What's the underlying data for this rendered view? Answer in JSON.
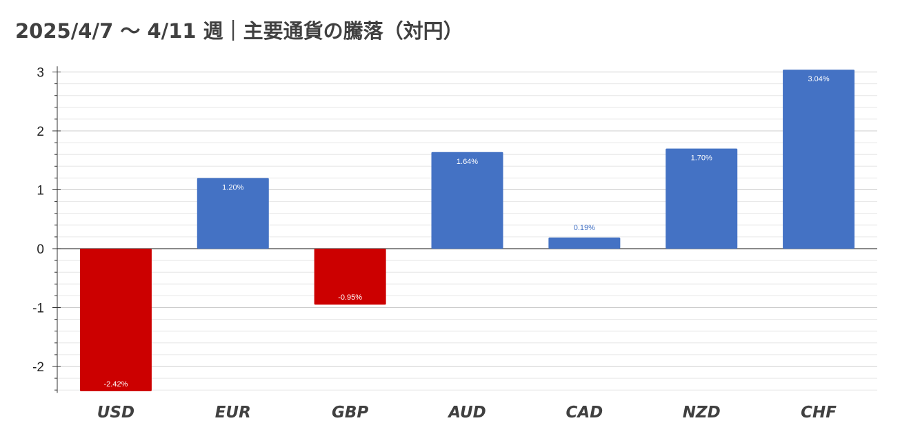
{
  "chart_data": {
    "type": "bar",
    "title": "2025/4/7 〜 4/11 週｜主要通貨の騰落（対円）",
    "categories": [
      "USD",
      "EUR",
      "GBP",
      "AUD",
      "CAD",
      "NZD",
      "CHF"
    ],
    "values": [
      -2.42,
      1.2,
      -0.95,
      1.64,
      0.19,
      1.7,
      3.04
    ],
    "data_labels": [
      "-2.42%",
      "1.20%",
      "-0.95%",
      "1.64%",
      "0.19%",
      "1.70%",
      "3.04%"
    ],
    "yticks": [
      "3",
      "2",
      "1",
      "0",
      "-1",
      "-2"
    ],
    "ylim": [
      -2.4,
      3.05
    ],
    "xlabel": "",
    "ylabel": "",
    "grid": true,
    "legend": "none",
    "colors": {
      "positive": "#4472c4",
      "negative": "#cc0000",
      "label_inside": "#ffffff",
      "label_outside": "#4472c4",
      "gridline_major": "#cccccc",
      "gridline_minor": "#e6e6e6",
      "axis": "#333333"
    }
  }
}
